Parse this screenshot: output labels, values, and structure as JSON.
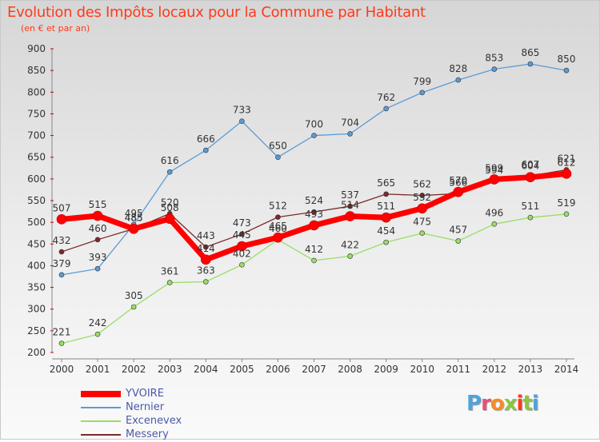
{
  "title": "Evolution des Impôts locaux pour la Commune par Habitant",
  "subtitle": "(en € et par an)",
  "logo": {
    "text": "Proxiti",
    "letters": [
      "P",
      "r",
      "o",
      "x",
      "i",
      "t",
      "i"
    ],
    "colors": [
      "#4fa3d9",
      "#e94e77",
      "#f28c28",
      "#8cc63f",
      "#ff3a1c",
      "#8cc63f",
      "#4fa3d9"
    ]
  },
  "chart_data": {
    "type": "line",
    "title": "Evolution des Impôts locaux pour la Commune par Habitant",
    "subtitle": "(en € et par an)",
    "x": [
      2000,
      2001,
      2002,
      2003,
      2004,
      2005,
      2006,
      2007,
      2008,
      2009,
      2010,
      2011,
      2012,
      2013,
      2014
    ],
    "ylim": [
      200,
      900
    ],
    "yticks": [
      200,
      250,
      300,
      350,
      400,
      450,
      500,
      550,
      600,
      650,
      700,
      750,
      800,
      850,
      900
    ],
    "grid": false,
    "legend_position": "bottom-left",
    "series": [
      {
        "name": "YVOIRE",
        "color": "#ff0000",
        "values": [
          507,
          515,
          485,
          508,
          414,
          445,
          465,
          493,
          514,
          511,
          532,
          570,
          599,
          604,
          612
        ]
      },
      {
        "name": "Nernier",
        "color": "#5b9bd5",
        "values": [
          379,
          393,
          495,
          616,
          666,
          733,
          650,
          700,
          704,
          762,
          799,
          828,
          853,
          865,
          850
        ]
      },
      {
        "name": "Excenevex",
        "color": "#99dd66",
        "values": [
          221,
          242,
          305,
          361,
          363,
          402,
          460,
          412,
          422,
          454,
          475,
          457,
          496,
          511,
          519
        ]
      },
      {
        "name": "Messery",
        "color": "#7a2a2a",
        "values": [
          432,
          460,
          485,
          520,
          443,
          473,
          512,
          524,
          537,
          565,
          562,
          566,
          594,
          607,
          621
        ]
      }
    ]
  }
}
